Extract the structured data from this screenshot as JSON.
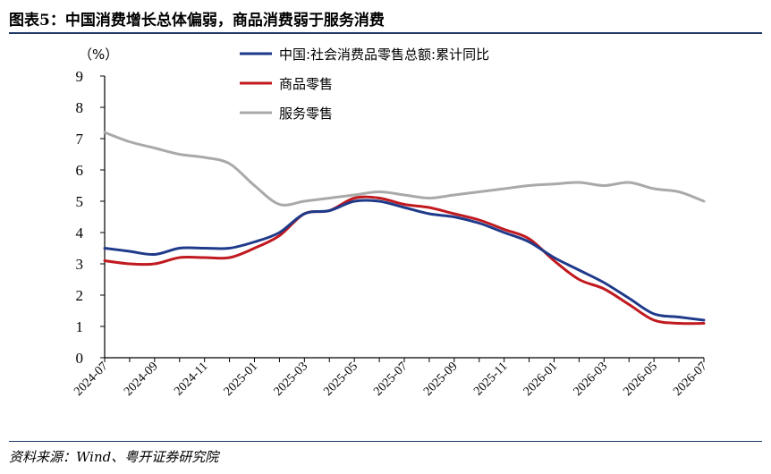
{
  "header": {
    "title": "图表5：中国消费增长总体偏弱，商品消费弱于服务消费"
  },
  "footer": {
    "source": "资料来源：Wind、粤开证券研究院"
  },
  "chart_data": {
    "type": "line",
    "unit_label": "（%）",
    "ylim": [
      0,
      9
    ],
    "yticks": [
      0,
      1,
      2,
      3,
      4,
      5,
      6,
      7,
      8,
      9
    ],
    "grid": false,
    "legend_position": "top-center",
    "xtick_labels": [
      "2024-07",
      "2024-09",
      "2024-11",
      "2025-01",
      "2025-03",
      "2025-05",
      "2025-07",
      "2025-09",
      "2025-11",
      "2026-01",
      "2026-03",
      "2026-05",
      "2026-07"
    ],
    "x": [
      "2024-07",
      "2024-08",
      "2024-09",
      "2024-10",
      "2024-11",
      "2024-12",
      "2025-01",
      "2025-02",
      "2025-03",
      "2025-04",
      "2025-05",
      "2025-06",
      "2025-07",
      "2025-08",
      "2025-09",
      "2025-10",
      "2025-11",
      "2025-12",
      "2026-01",
      "2026-02",
      "2026-03",
      "2026-04",
      "2026-05",
      "2026-06",
      "2026-07"
    ],
    "series": [
      {
        "name": "中国:社会消费品零售总额:累计同比",
        "color": "#1f3a8a",
        "values": [
          3.5,
          3.4,
          3.3,
          3.5,
          3.5,
          3.5,
          3.7,
          4.0,
          4.6,
          4.7,
          5.0,
          5.0,
          4.8,
          4.6,
          4.5,
          4.3,
          4.0,
          3.7,
          3.2,
          2.8,
          2.4,
          1.9,
          1.4,
          1.3,
          1.2
        ]
      },
      {
        "name": "商品零售",
        "color": "#c0191f",
        "values": [
          3.1,
          3.0,
          3.0,
          3.2,
          3.2,
          3.2,
          3.5,
          3.9,
          4.6,
          4.7,
          5.1,
          5.1,
          4.9,
          4.8,
          4.6,
          4.4,
          4.1,
          3.8,
          3.1,
          2.5,
          2.2,
          1.7,
          1.2,
          1.1,
          1.1
        ]
      },
      {
        "name": "服务零售",
        "color": "#a9a9a9",
        "values": [
          7.2,
          6.9,
          6.7,
          6.5,
          6.4,
          6.2,
          5.5,
          4.9,
          5.0,
          5.1,
          5.2,
          5.3,
          5.2,
          5.1,
          5.2,
          5.3,
          5.4,
          5.5,
          5.55,
          5.6,
          5.5,
          5.6,
          5.4,
          5.3,
          5.0
        ]
      }
    ]
  }
}
